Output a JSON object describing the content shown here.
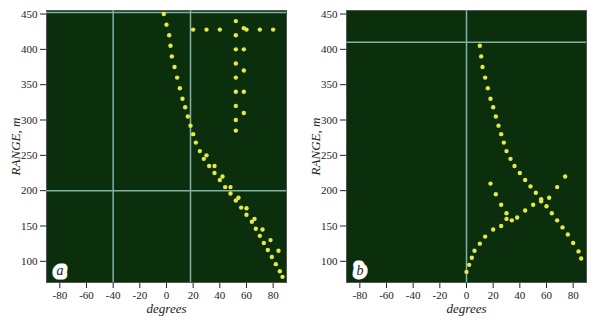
{
  "chart_data": [
    {
      "type": "scatter",
      "title": "a",
      "x_label": "degrees",
      "y_label": "RANGE, m",
      "color": "#e4e84a",
      "xlim": [
        -90,
        90
      ],
      "ylim": [
        70,
        455
      ],
      "xticks": [
        -80,
        -60,
        -40,
        -20,
        0,
        20,
        40,
        60,
        80
      ],
      "yticks": [
        100,
        150,
        200,
        250,
        300,
        350,
        400,
        450
      ],
      "reference_lines": {
        "x": [
          -40,
          18
        ],
        "y": [
          200,
          452
        ]
      },
      "x": [
        -2,
        0,
        2,
        3,
        4,
        6,
        8,
        10,
        12,
        14,
        16,
        18,
        20,
        22,
        25,
        28,
        32,
        36,
        40,
        44,
        48,
        52,
        56,
        60,
        64,
        67,
        70,
        73,
        76,
        79,
        82,
        85,
        87,
        30,
        36,
        42,
        48,
        54,
        60,
        66,
        72,
        78,
        84,
        52,
        52,
        52,
        52,
        52,
        52,
        52,
        52,
        52,
        58,
        58,
        58,
        58,
        58,
        20,
        30,
        40,
        60,
        70,
        80
      ],
      "y": [
        450,
        435,
        420,
        405,
        390,
        375,
        360,
        345,
        330,
        318,
        305,
        292,
        280,
        268,
        256,
        245,
        235,
        225,
        215,
        205,
        196,
        186,
        176,
        166,
        156,
        146,
        136,
        126,
        116,
        106,
        96,
        86,
        78,
        250,
        235,
        220,
        205,
        190,
        175,
        160,
        145,
        130,
        115,
        440,
        420,
        400,
        380,
        360,
        340,
        320,
        300,
        285,
        430,
        400,
        370,
        340,
        310,
        428,
        428,
        428,
        428,
        428,
        428
      ]
    },
    {
      "type": "scatter",
      "title": "b",
      "x_label": "degrees",
      "y_label": "RANGE, m",
      "color": "#e4e84a",
      "xlim": [
        -90,
        90
      ],
      "ylim": [
        70,
        455
      ],
      "xticks": [
        -80,
        -60,
        -40,
        -20,
        0,
        20,
        40,
        60,
        80
      ],
      "yticks": [
        100,
        150,
        200,
        250,
        300,
        350,
        400,
        450
      ],
      "reference_lines": {
        "x": [
          0
        ],
        "y": [
          410
        ]
      },
      "x": [
        10,
        11,
        12,
        14,
        16,
        18,
        20,
        22,
        24,
        26,
        28,
        30,
        33,
        36,
        40,
        44,
        48,
        52,
        56,
        60,
        64,
        68,
        72,
        76,
        80,
        84,
        86,
        18,
        22,
        26,
        30,
        34,
        38,
        44,
        50,
        56,
        62,
        68,
        74,
        0,
        2,
        4,
        6,
        10,
        14,
        20,
        26,
        30
      ],
      "y": [
        405,
        390,
        375,
        360,
        345,
        330,
        318,
        305,
        292,
        280,
        268,
        256,
        245,
        235,
        225,
        215,
        206,
        197,
        188,
        178,
        168,
        158,
        148,
        138,
        126,
        114,
        104,
        210,
        195,
        180,
        168,
        158,
        162,
        172,
        180,
        185,
        190,
        205,
        220,
        85,
        95,
        105,
        115,
        125,
        135,
        145,
        150,
        160
      ]
    }
  ]
}
